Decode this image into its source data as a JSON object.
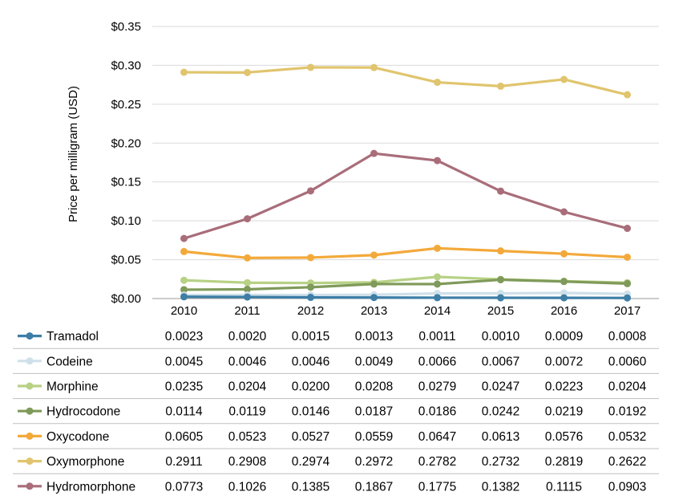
{
  "chart_data": {
    "type": "line",
    "title": "",
    "xlabel": "",
    "ylabel": "Price per milligram (USD)",
    "categories": [
      "2010",
      "2011",
      "2012",
      "2013",
      "2014",
      "2015",
      "2016",
      "2017"
    ],
    "ylim": [
      0,
      0.35
    ],
    "yticks": [
      0,
      0.05,
      0.1,
      0.15,
      0.2,
      0.25,
      0.3,
      0.35
    ],
    "ytick_labels": [
      "$0.00",
      "$0.05",
      "$0.10",
      "$0.15",
      "$0.20",
      "$0.25",
      "$0.30",
      "$0.35"
    ],
    "grid": true,
    "legend": "data-table-below",
    "series": [
      {
        "name": "Tramadol",
        "color": "#3d7ea6",
        "values": [
          0.0023,
          0.002,
          0.0015,
          0.0013,
          0.0011,
          0.001,
          0.0009,
          0.0008
        ],
        "labels": [
          "0.0023",
          "0.0020",
          "0.0015",
          "0.0013",
          "0.0011",
          "0.0010",
          "0.0009",
          "0.0008"
        ]
      },
      {
        "name": "Codeine",
        "color": "#cfe0ea",
        "values": [
          0.0045,
          0.0046,
          0.0046,
          0.0049,
          0.0066,
          0.0067,
          0.0072,
          0.006
        ],
        "labels": [
          "0.0045",
          "0.0046",
          "0.0046",
          "0.0049",
          "0.0066",
          "0.0067",
          "0.0072",
          "0.0060"
        ]
      },
      {
        "name": "Morphine",
        "color": "#b7d185",
        "values": [
          0.0235,
          0.0204,
          0.02,
          0.0208,
          0.0279,
          0.0247,
          0.0223,
          0.0204
        ],
        "labels": [
          "0.0235",
          "0.0204",
          "0.0200",
          "0.0208",
          "0.0279",
          "0.0247",
          "0.0223",
          "0.0204"
        ]
      },
      {
        "name": "Hydrocodone",
        "color": "#7f9a5a",
        "values": [
          0.0114,
          0.0119,
          0.0146,
          0.0187,
          0.0186,
          0.0242,
          0.0219,
          0.0192
        ],
        "labels": [
          "0.0114",
          "0.0119",
          "0.0146",
          "0.0187",
          "0.0186",
          "0.0242",
          "0.0219",
          "0.0192"
        ]
      },
      {
        "name": "Oxycodone",
        "color": "#f3a93a",
        "values": [
          0.0605,
          0.0523,
          0.0527,
          0.0559,
          0.0647,
          0.0613,
          0.0576,
          0.0532
        ],
        "labels": [
          "0.0605",
          "0.0523",
          "0.0527",
          "0.0559",
          "0.0647",
          "0.0613",
          "0.0576",
          "0.0532"
        ]
      },
      {
        "name": "Oxymorphone",
        "color": "#e0c56e",
        "values": [
          0.2911,
          0.2908,
          0.2974,
          0.2972,
          0.2782,
          0.2732,
          0.2819,
          0.2622
        ],
        "labels": [
          "0.2911",
          "0.2908",
          "0.2974",
          "0.2972",
          "0.2782",
          "0.2732",
          "0.2819",
          "0.2622"
        ]
      },
      {
        "name": "Hydromorphone",
        "color": "#a96d7a",
        "values": [
          0.0773,
          0.1026,
          0.1385,
          0.1867,
          0.1775,
          0.1382,
          0.1115,
          0.0903
        ],
        "labels": [
          "0.0773",
          "0.1026",
          "0.1385",
          "0.1867",
          "0.1775",
          "0.1382",
          "0.1115",
          "0.0903"
        ]
      }
    ]
  }
}
